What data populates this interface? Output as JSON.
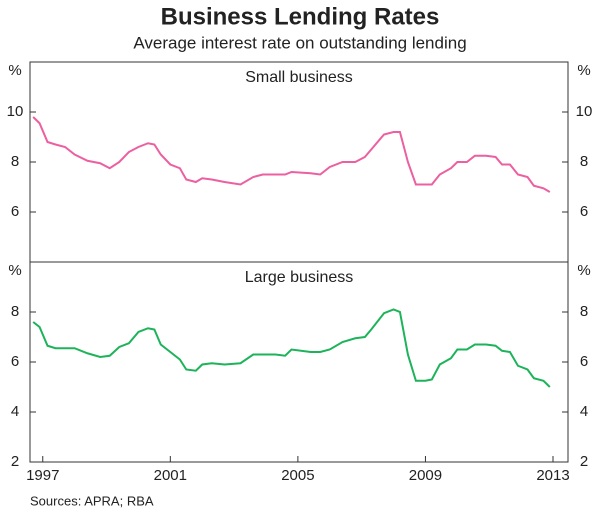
{
  "title": "Business Lending Rates",
  "subtitle": "Average interest rate on outstanding lending",
  "source": "Sources: APRA; RBA",
  "chart_data": [
    {
      "type": "line",
      "title": "Small business",
      "y_unit": "%",
      "x": [
        1996.7,
        1996.9,
        1997.15,
        1997.4,
        1997.7,
        1998.0,
        1998.4,
        1998.8,
        1999.1,
        1999.4,
        1999.7,
        2000.0,
        2000.3,
        2000.5,
        2000.7,
        2001.0,
        2001.3,
        2001.5,
        2001.8,
        2002.0,
        2002.3,
        2002.7,
        2003.2,
        2003.6,
        2003.9,
        2004.3,
        2004.6,
        2004.8,
        2005.4,
        2005.7,
        2006.0,
        2006.4,
        2006.8,
        2007.1,
        2007.3,
        2007.7,
        2008.0,
        2008.2,
        2008.45,
        2008.7,
        2009.0,
        2009.2,
        2009.45,
        2009.8,
        2010.0,
        2010.3,
        2010.55,
        2010.9,
        2011.2,
        2011.4,
        2011.65,
        2011.9,
        2012.2,
        2012.4,
        2012.7,
        2012.9
      ],
      "series": [
        {
          "color": "#ec5fa0",
          "values": [
            9.8,
            9.55,
            8.8,
            8.7,
            8.6,
            8.3,
            8.05,
            7.95,
            7.75,
            8.0,
            8.4,
            8.6,
            8.75,
            8.7,
            8.3,
            7.9,
            7.75,
            7.3,
            7.2,
            7.35,
            7.3,
            7.2,
            7.1,
            7.4,
            7.5,
            7.5,
            7.5,
            7.6,
            7.55,
            7.5,
            7.8,
            8.0,
            8.0,
            8.2,
            8.5,
            9.1,
            9.2,
            9.2,
            8.0,
            7.1,
            7.1,
            7.1,
            7.5,
            7.75,
            8.0,
            8.0,
            8.25,
            8.25,
            8.2,
            7.9,
            7.9,
            7.5,
            7.4,
            7.05,
            6.95,
            6.8
          ]
        }
      ],
      "xlim": [
        1996.6,
        2013.47
      ],
      "ylim": [
        4,
        12
      ],
      "yticks": [
        6,
        8,
        10
      ]
    },
    {
      "type": "line",
      "title": "Large business",
      "y_unit": "%",
      "x": [
        1996.7,
        1996.9,
        1997.15,
        1997.4,
        1997.7,
        1998.0,
        1998.4,
        1998.8,
        1999.1,
        1999.4,
        1999.7,
        2000.0,
        2000.3,
        2000.5,
        2000.7,
        2001.0,
        2001.3,
        2001.5,
        2001.8,
        2002.0,
        2002.3,
        2002.7,
        2003.2,
        2003.6,
        2003.9,
        2004.3,
        2004.6,
        2004.8,
        2005.4,
        2005.7,
        2006.0,
        2006.4,
        2006.8,
        2007.1,
        2007.3,
        2007.7,
        2008.0,
        2008.2,
        2008.45,
        2008.7,
        2009.0,
        2009.2,
        2009.45,
        2009.8,
        2010.0,
        2010.3,
        2010.55,
        2010.9,
        2011.2,
        2011.4,
        2011.65,
        2011.9,
        2012.2,
        2012.4,
        2012.7,
        2012.9
      ],
      "series": [
        {
          "color": "#1db35a",
          "values": [
            7.6,
            7.4,
            6.65,
            6.55,
            6.55,
            6.55,
            6.35,
            6.2,
            6.25,
            6.6,
            6.75,
            7.2,
            7.35,
            7.3,
            6.7,
            6.4,
            6.1,
            5.7,
            5.65,
            5.9,
            5.95,
            5.9,
            5.95,
            6.3,
            6.3,
            6.3,
            6.25,
            6.5,
            6.4,
            6.4,
            6.5,
            6.8,
            6.95,
            7.0,
            7.3,
            7.95,
            8.1,
            8.0,
            6.3,
            5.25,
            5.25,
            5.3,
            5.9,
            6.15,
            6.5,
            6.5,
            6.7,
            6.7,
            6.65,
            6.45,
            6.4,
            5.85,
            5.7,
            5.35,
            5.25,
            5.0
          ]
        }
      ],
      "xlim": [
        1996.6,
        2013.47
      ],
      "ylim": [
        2,
        10
      ],
      "yticks": [
        2,
        4,
        6,
        8
      ],
      "xticks": [
        1997,
        2001,
        2005,
        2009,
        2013
      ]
    }
  ]
}
